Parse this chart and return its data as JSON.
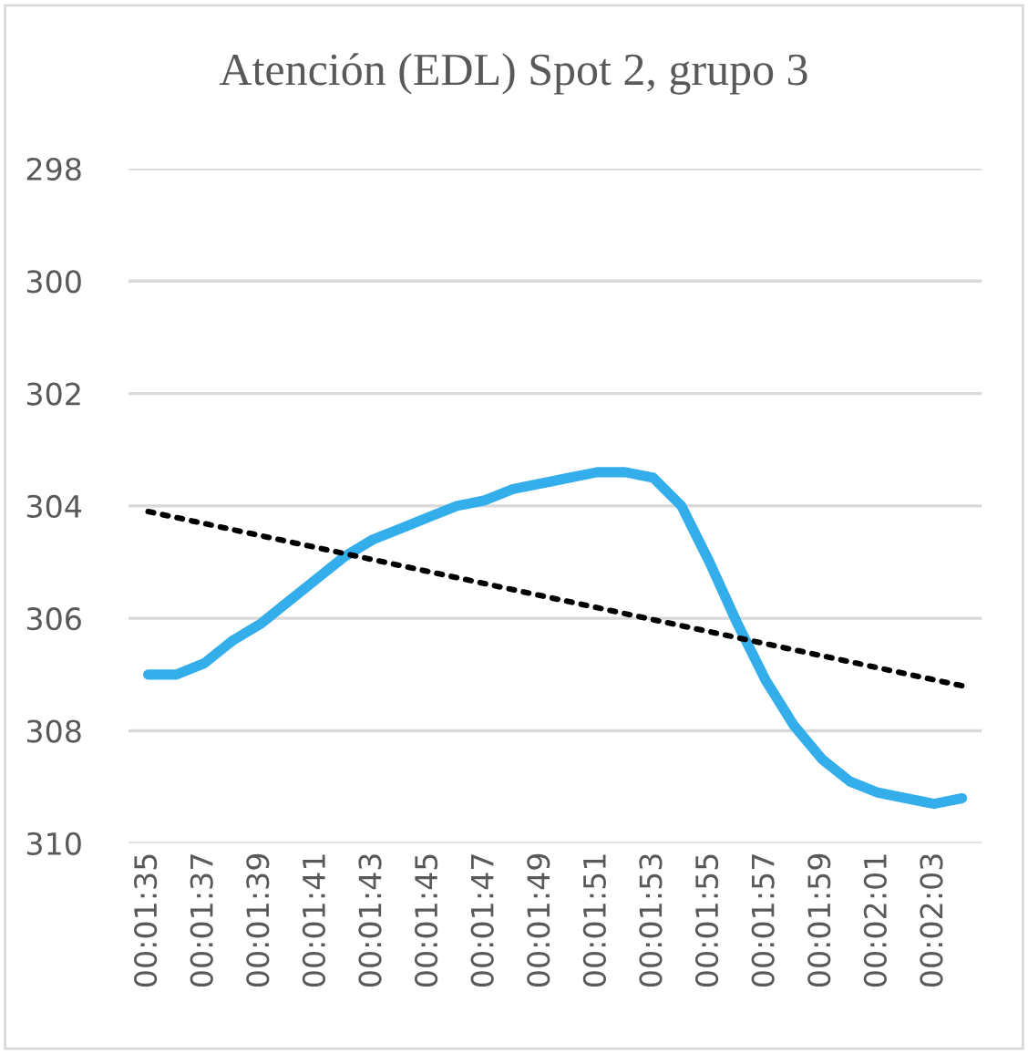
{
  "chart_data": {
    "type": "line",
    "title": "Atención (EDL) Spot 2, grupo 3",
    "categories": [
      "00:01:35",
      null,
      "00:01:37",
      null,
      "00:01:39",
      null,
      "00:01:41",
      null,
      "00:01:43",
      null,
      "00:01:45",
      null,
      "00:01:47",
      null,
      "00:01:49",
      null,
      "00:01:51",
      null,
      "00:01:53",
      null,
      "00:01:55",
      null,
      "00:01:57",
      null,
      "00:01:59",
      null,
      "00:02:01",
      null,
      "00:02:03",
      null
    ],
    "series": [
      {
        "color": "#34aeea",
        "line_style": "solid",
        "values": [
          307.0,
          307.0,
          306.8,
          306.4,
          306.1,
          305.7,
          305.3,
          304.9,
          304.6,
          304.4,
          304.2,
          304.0,
          303.9,
          303.7,
          303.6,
          303.5,
          303.4,
          303.4,
          303.5,
          304.0,
          305.0,
          306.1,
          307.1,
          307.9,
          308.5,
          308.9,
          309.1,
          309.2,
          309.3,
          309.2
        ]
      },
      {
        "color": "#000000",
        "line_style": "dotted",
        "values": [
          304.1,
          null,
          null,
          null,
          null,
          null,
          null,
          null,
          null,
          null,
          null,
          null,
          null,
          null,
          null,
          null,
          null,
          null,
          null,
          null,
          null,
          null,
          null,
          null,
          null,
          null,
          null,
          null,
          null,
          307.2
        ]
      }
    ],
    "ylim": [
      310,
      298
    ],
    "yticks": [
      298,
      300,
      302,
      304,
      306,
      308,
      310
    ],
    "grid": "y",
    "legend": false
  }
}
